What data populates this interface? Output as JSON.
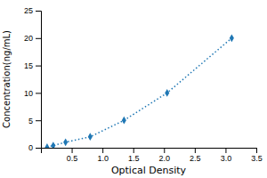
{
  "chart_data": {
    "type": "line",
    "x": [
      0.1,
      0.2,
      0.4,
      0.8,
      1.35,
      2.05,
      3.1
    ],
    "values": [
      0.1,
      0.4,
      1.0,
      2.0,
      5.0,
      10.0,
      20.0
    ],
    "xlabel": "Optical Density",
    "ylabel": "Concentration(ng/mL)",
    "xlim": [
      0,
      3.5
    ],
    "ylim": [
      0,
      25
    ],
    "xticks": [
      0.5,
      {
        "value": 1,
        "label": "1.0"
      },
      1.5,
      {
        "value": 2,
        "label": "2.0"
      },
      2.5,
      {
        "value": 3,
        "label": "3.0"
      },
      3.5
    ],
    "yticks": [
      0,
      5,
      10,
      15,
      20,
      25
    ],
    "grid": false,
    "marker": "diamond",
    "line_style": "dotted"
  }
}
